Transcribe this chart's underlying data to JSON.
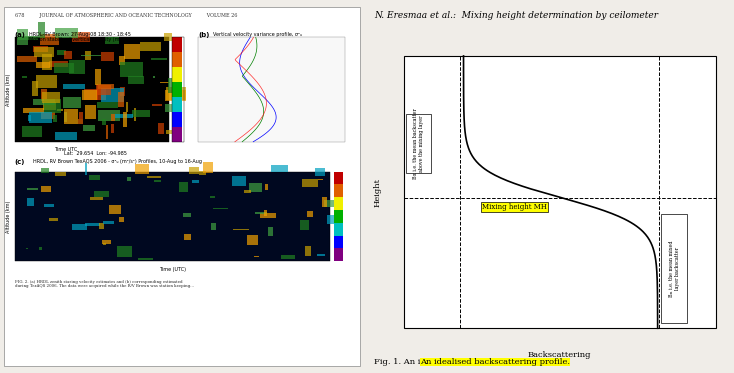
{
  "title_right": "N. Eresmaa et al.:  Mixing height determination by ceilometer",
  "xlabel_right": "Backscattering",
  "ylabel_right": "Height",
  "caption": "Fig. 1. An idealised backscattering profile.",
  "caption_highlight": true,
  "journal_header": "678          JOURNAL OF ATMOSPHERIC AND OCEANIC TECHNOLOGY          VOLUME 26",
  "label_above": "B     i.e. the mean backscatter\nα    above the mixing layer",
  "label_below": "B     i.e. the mean mixed\n  m    layer backscatter",
  "mixing_height_label": "Mixing height MH",
  "bg_color": "#f0ede8",
  "plot_bg": "#ffffff",
  "line_color": "#000000",
  "dashed_line_color": "#000000",
  "box_fill_above": "#ffffff",
  "box_fill_below": "#ffffff",
  "highlight_color": "#ffff00"
}
